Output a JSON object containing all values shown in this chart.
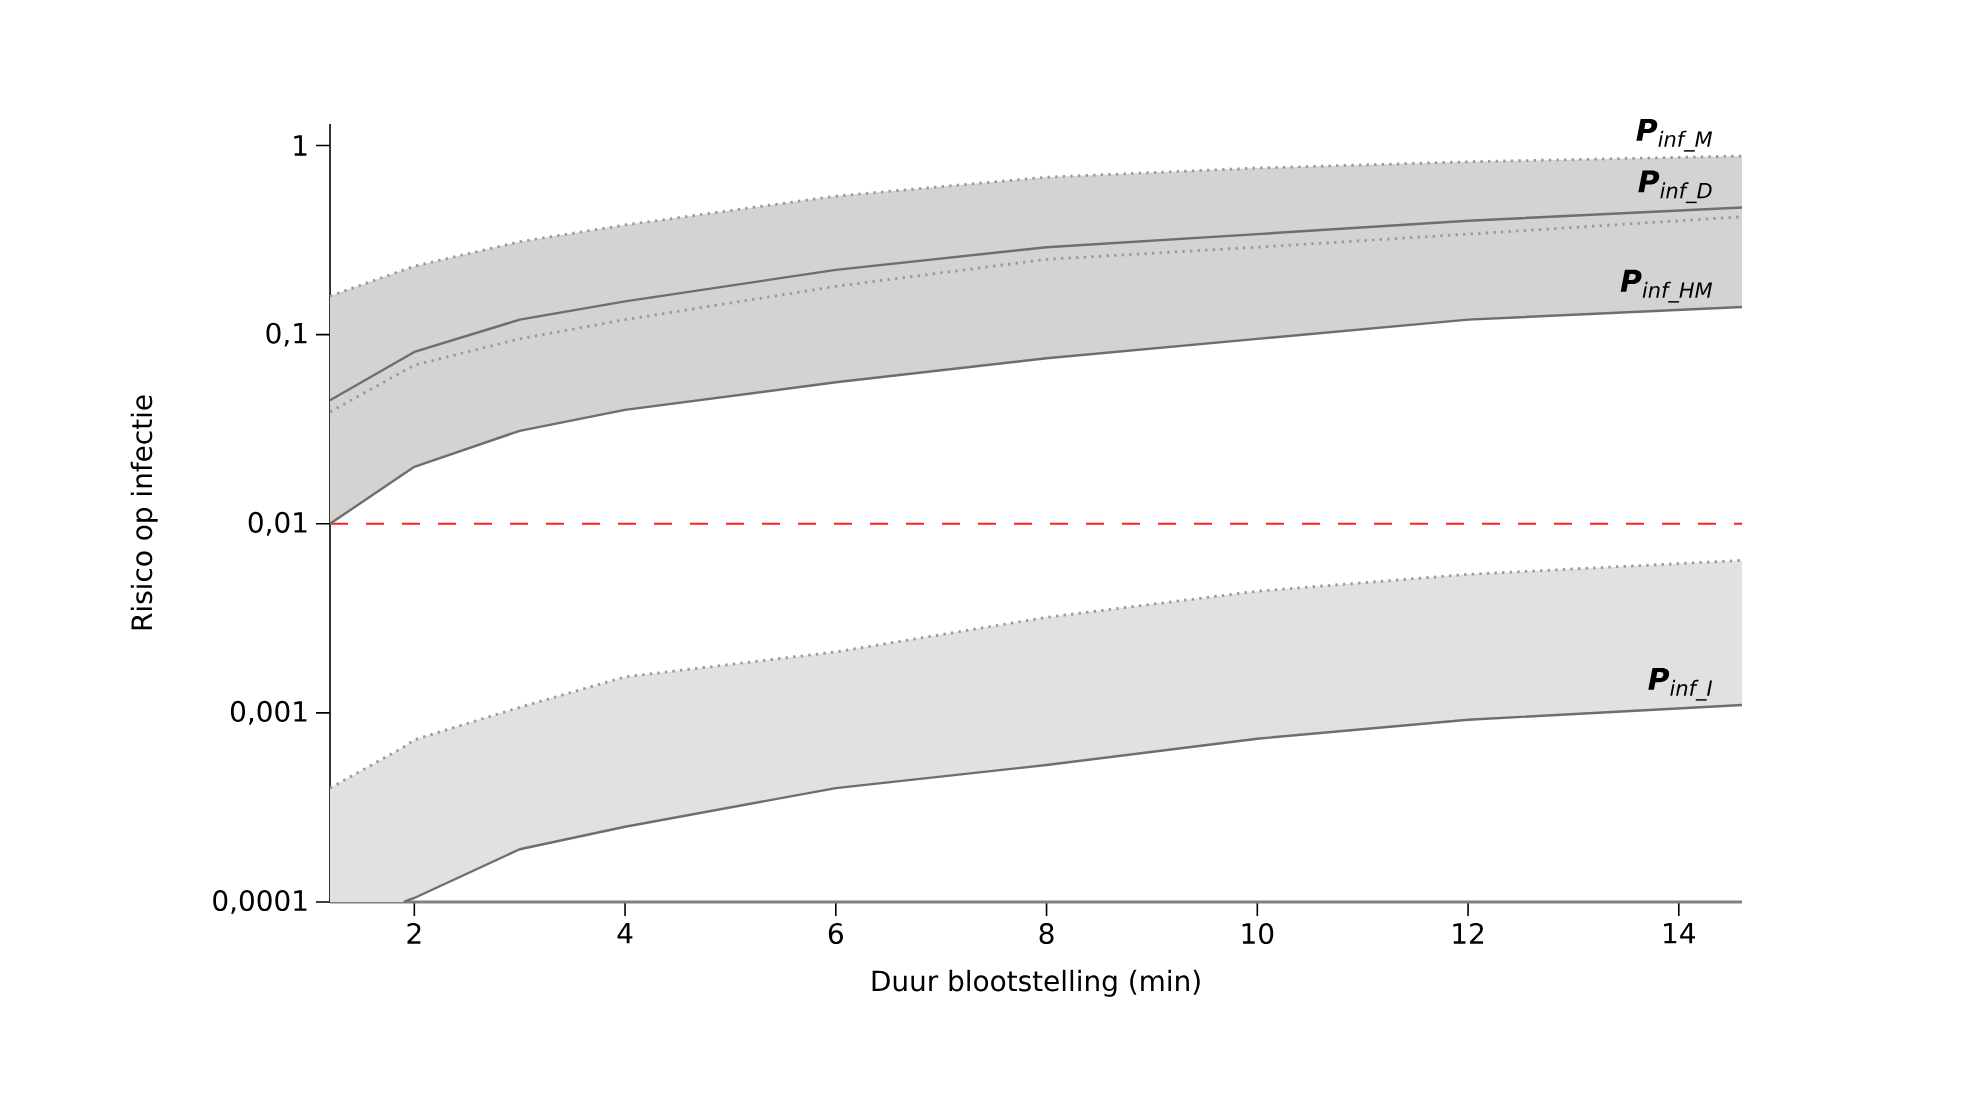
{
  "chart_data": {
    "type": "line",
    "xlabel": "Duur blootstelling (min)",
    "ylabel": "Risico op infectie",
    "log": "y",
    "xlim": [
      1.2,
      14.6
    ],
    "ylim": [
      0.0001,
      1.3
    ],
    "xticks": [
      2,
      4,
      6,
      8,
      10,
      12,
      14
    ],
    "yticks": [
      {
        "value": 0.0001,
        "label": "0,0001"
      },
      {
        "value": 0.001,
        "label": "0,001"
      },
      {
        "value": 0.01,
        "label": "0,01"
      },
      {
        "value": 0.1,
        "label": "0,1"
      },
      {
        "value": 1,
        "label": "1"
      }
    ],
    "ref_lines": [
      {
        "axis": "y",
        "value": 0.01,
        "color": "#ff2020",
        "line_style": "dashed"
      }
    ],
    "series": [
      {
        "name": "**P**$_{inf_M}$",
        "line_style": "dotted",
        "color": "#9a9a9a",
        "x": [
          1.2,
          2,
          3,
          4,
          6,
          8,
          10,
          12,
          14.6
        ],
        "values": [
          0.16,
          0.23,
          0.31,
          0.38,
          0.54,
          0.68,
          0.76,
          0.82,
          0.88
        ]
      },
      {
        "name": "**P**$_{inf_D}$",
        "line_style": "solid",
        "color": "#6e6e6e",
        "x": [
          1.2,
          2,
          3,
          4,
          6,
          8,
          10,
          12,
          14.6
        ],
        "values": [
          0.045,
          0.081,
          0.12,
          0.15,
          0.22,
          0.29,
          0.34,
          0.4,
          0.47
        ],
        "lower": [
          0.01,
          0.02,
          0.031,
          0.04,
          0.056,
          0.075,
          0.095,
          0.12,
          0.14
        ],
        "upper": [
          0.16,
          0.23,
          0.31,
          0.38,
          0.54,
          0.68,
          0.76,
          0.82,
          0.88
        ]
      },
      {
        "line_style": "dotted",
        "color": "#9a9a9a",
        "x": [
          1.2,
          2,
          3,
          4,
          6,
          8,
          10,
          12,
          14.6
        ],
        "values": [
          0.039,
          0.069,
          0.095,
          0.12,
          0.18,
          0.25,
          0.29,
          0.34,
          0.42
        ]
      },
      {
        "name": "**P**$_{inf_HM}$",
        "line_style": "solid",
        "color": "#6e6e6e",
        "x": [
          1.2,
          2,
          3,
          4,
          6,
          8,
          10,
          12,
          14.6
        ],
        "values": [
          0.01,
          0.02,
          0.031,
          0.04,
          0.056,
          0.075,
          0.095,
          0.12,
          0.14
        ]
      },
      {
        "line_style": "dotted",
        "color": "#9a9a9a",
        "x": [
          1.2,
          1.9,
          2,
          3,
          4,
          6,
          8,
          10,
          12,
          14.6
        ],
        "values": [
          0.0004,
          0.00066,
          0.00072,
          0.00107,
          0.00155,
          0.0021,
          0.0032,
          0.0044,
          0.0054,
          0.0064
        ],
        "lower": [
          0.0001,
          0.0001,
          0.000105,
          0.00019,
          0.00025,
          0.0004,
          0.00053,
          0.00073,
          0.00092,
          0.0011
        ],
        "upper": [
          0.0004,
          0.00066,
          0.00072,
          0.00107,
          0.00155,
          0.0021,
          0.0032,
          0.0044,
          0.0054,
          0.0064
        ]
      },
      {
        "name": "**P**$_{inf_I}$",
        "line_style": "solid",
        "color": "#6e6e6e",
        "x": [
          1.9,
          2,
          3,
          4,
          6,
          8,
          10,
          12,
          14.6
        ],
        "values": [
          0.0001,
          0.000105,
          0.00019,
          0.00025,
          0.0004,
          0.00053,
          0.00073,
          0.00092,
          0.0011
        ]
      }
    ]
  }
}
